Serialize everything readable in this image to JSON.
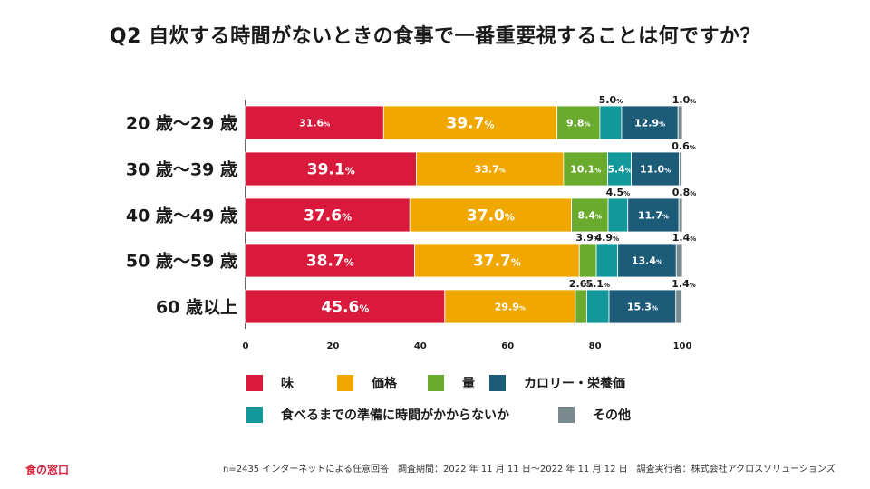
{
  "title": "Q2 自炊する時間がないときの食事で一番重要視することは何ですか？",
  "colors": {
    "taste": "#d91a3c",
    "price": "#f0a800",
    "amount": "#6aaa2c",
    "calorie": "#1d5c78",
    "prep": "#13999b",
    "other": "#7a8a8e"
  },
  "chart_data": {
    "type": "bar",
    "orientation": "horizontal",
    "stacked": true,
    "categories": [
      "20 歳〜29 歳",
      "30 歳〜39 歳",
      "40 歳〜49 歳",
      "50 歳〜59 歳",
      "60 歳以上"
    ],
    "series": [
      {
        "name": "味",
        "key": "taste",
        "values": [
          31.6,
          39.1,
          37.6,
          38.7,
          45.6
        ]
      },
      {
        "name": "価格",
        "key": "price",
        "values": [
          39.7,
          33.7,
          37.0,
          37.7,
          29.9
        ]
      },
      {
        "name": "量",
        "key": "amount",
        "values": [
          9.8,
          10.1,
          8.4,
          3.9,
          2.6
        ]
      },
      {
        "name": "食べるまでの準備に時間がかからないか",
        "key": "prep",
        "values": [
          5.0,
          5.4,
          4.5,
          4.9,
          5.1
        ]
      },
      {
        "name": "カロリー・栄養価",
        "key": "calorie",
        "values": [
          12.9,
          11.0,
          11.7,
          13.4,
          15.3
        ]
      },
      {
        "name": "その他",
        "key": "other",
        "values": [
          1.0,
          0.6,
          0.8,
          1.4,
          1.4
        ]
      }
    ],
    "xlim": [
      0,
      100
    ],
    "xticks": [
      "0",
      "20",
      "40",
      "60",
      "80",
      "100"
    ],
    "unit": "%"
  },
  "legend": [
    {
      "label": "味",
      "key": "taste"
    },
    {
      "label": "価格",
      "key": "price"
    },
    {
      "label": "量",
      "key": "amount"
    },
    {
      "label": "カロリー・栄養価",
      "key": "calorie"
    },
    {
      "label": "食べるまでの準備に時間がかからないか",
      "key": "prep"
    },
    {
      "label": "その他",
      "key": "other"
    }
  ],
  "footer": {
    "brand": "食の窓口",
    "note": "n=2435 インターネットによる任意回答　調査期間：2022 年 11 月 11 日〜2022 年 11 月 12 日　調査実行者：株式会社アクロスソリューションズ"
  }
}
